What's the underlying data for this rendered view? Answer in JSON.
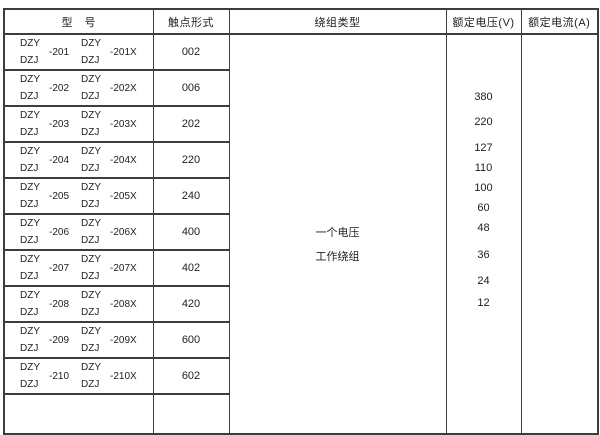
{
  "header": {
    "model": "型　号",
    "contact": "触点形式",
    "winding": "绕组类型",
    "voltage": "额定电压(V)",
    "current": "额定电流(A)"
  },
  "rows": [
    {
      "series_a": "DZY",
      "series_b": "DZJ",
      "code": "-201",
      "code_x": "-201X",
      "contact": "002"
    },
    {
      "series_a": "DZY",
      "series_b": "DZJ",
      "code": "-202",
      "code_x": "-202X",
      "contact": "006"
    },
    {
      "series_a": "DZY",
      "series_b": "DZJ",
      "code": "-203",
      "code_x": "-203X",
      "contact": "202"
    },
    {
      "series_a": "DZY",
      "series_b": "DZJ",
      "code": "-204",
      "code_x": "-204X",
      "contact": "220"
    },
    {
      "series_a": "DZY",
      "series_b": "DZJ",
      "code": "-205",
      "code_x": "-205X",
      "contact": "240"
    },
    {
      "series_a": "DZY",
      "series_b": "DZJ",
      "code": "-206",
      "code_x": "-206X",
      "contact": "400"
    },
    {
      "series_a": "DZY",
      "series_b": "DZJ",
      "code": "-207",
      "code_x": "-207X",
      "contact": "402"
    },
    {
      "series_a": "DZY",
      "series_b": "DZJ",
      "code": "-208",
      "code_x": "-208X",
      "contact": "420"
    },
    {
      "series_a": "DZY",
      "series_b": "DZJ",
      "code": "-209",
      "code_x": "-209X",
      "contact": "600"
    },
    {
      "series_a": "DZY",
      "series_b": "DZJ",
      "code": "-210",
      "code_x": "-210X",
      "contact": "602"
    }
  ],
  "winding": {
    "line1": "一个电压",
    "line2": "工作绕组"
  },
  "voltages": [
    "380",
    "220",
    "127",
    "110",
    "100",
    "60",
    "48",
    "36",
    "24",
    "12"
  ],
  "current_values": [],
  "colors": {
    "border": "#3d3d3d",
    "text": "#1e1e1e",
    "background": "#ffffff"
  }
}
